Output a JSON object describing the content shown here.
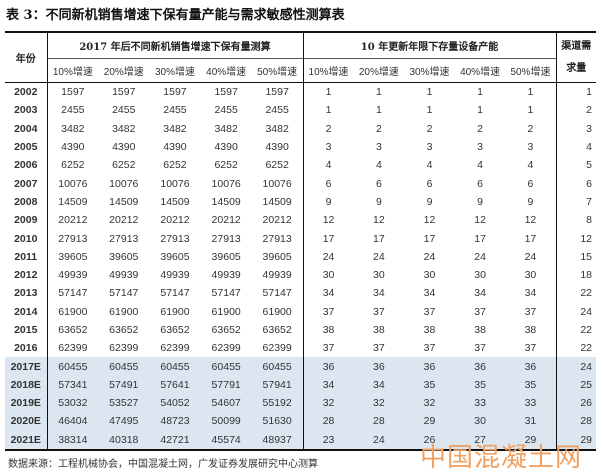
{
  "title": "表 3：不同新机销售增速下保有量产能与需求敏感性测算表",
  "table": {
    "year_header": "年份",
    "group1_header": "2017 年后不同新机销售增速下保有量测算",
    "group2_header": "10 年更新年限下存量设备产能",
    "channel_header": "渠道需求量",
    "subheaders": [
      "10%增速",
      "20%增速",
      "30%增速",
      "40%增速",
      "50%增速"
    ],
    "highlight_color": "#dce6f1",
    "rows": [
      {
        "year": "2002",
        "stock": [
          "1597",
          "1597",
          "1597",
          "1597",
          "1597"
        ],
        "capacity": [
          "1",
          "1",
          "1",
          "1",
          "1"
        ],
        "channel": "1"
      },
      {
        "year": "2003",
        "stock": [
          "2455",
          "2455",
          "2455",
          "2455",
          "2455"
        ],
        "capacity": [
          "1",
          "1",
          "1",
          "1",
          "1"
        ],
        "channel": "2"
      },
      {
        "year": "2004",
        "stock": [
          "3482",
          "3482",
          "3482",
          "3482",
          "3482"
        ],
        "capacity": [
          "2",
          "2",
          "2",
          "2",
          "2"
        ],
        "channel": "3"
      },
      {
        "year": "2005",
        "stock": [
          "4390",
          "4390",
          "4390",
          "4390",
          "4390"
        ],
        "capacity": [
          "3",
          "3",
          "3",
          "3",
          "3"
        ],
        "channel": "4"
      },
      {
        "year": "2006",
        "stock": [
          "6252",
          "6252",
          "6252",
          "6252",
          "6252"
        ],
        "capacity": [
          "4",
          "4",
          "4",
          "4",
          "4"
        ],
        "channel": "5"
      },
      {
        "year": "2007",
        "stock": [
          "10076",
          "10076",
          "10076",
          "10076",
          "10076"
        ],
        "capacity": [
          "6",
          "6",
          "6",
          "6",
          "6"
        ],
        "channel": "6"
      },
      {
        "year": "2008",
        "stock": [
          "14509",
          "14509",
          "14509",
          "14509",
          "14509"
        ],
        "capacity": [
          "9",
          "9",
          "9",
          "9",
          "9"
        ],
        "channel": "7"
      },
      {
        "year": "2009",
        "stock": [
          "20212",
          "20212",
          "20212",
          "20212",
          "20212"
        ],
        "capacity": [
          "12",
          "12",
          "12",
          "12",
          "12"
        ],
        "channel": "8"
      },
      {
        "year": "2010",
        "stock": [
          "27913",
          "27913",
          "27913",
          "27913",
          "27913"
        ],
        "capacity": [
          "17",
          "17",
          "17",
          "17",
          "17"
        ],
        "channel": "12"
      },
      {
        "year": "2011",
        "stock": [
          "39605",
          "39605",
          "39605",
          "39605",
          "39605"
        ],
        "capacity": [
          "24",
          "24",
          "24",
          "24",
          "24"
        ],
        "channel": "15"
      },
      {
        "year": "2012",
        "stock": [
          "49939",
          "49939",
          "49939",
          "49939",
          "49939"
        ],
        "capacity": [
          "30",
          "30",
          "30",
          "30",
          "30"
        ],
        "channel": "18"
      },
      {
        "year": "2013",
        "stock": [
          "57147",
          "57147",
          "57147",
          "57147",
          "57147"
        ],
        "capacity": [
          "34",
          "34",
          "34",
          "34",
          "34"
        ],
        "channel": "22"
      },
      {
        "year": "2014",
        "stock": [
          "61900",
          "61900",
          "61900",
          "61900",
          "61900"
        ],
        "capacity": [
          "37",
          "37",
          "37",
          "37",
          "37"
        ],
        "channel": "24"
      },
      {
        "year": "2015",
        "stock": [
          "63652",
          "63652",
          "63652",
          "63652",
          "63652"
        ],
        "capacity": [
          "38",
          "38",
          "38",
          "38",
          "38"
        ],
        "channel": "22"
      },
      {
        "year": "2016",
        "stock": [
          "62399",
          "62399",
          "62399",
          "62399",
          "62399"
        ],
        "capacity": [
          "37",
          "37",
          "37",
          "37",
          "37"
        ],
        "channel": "22"
      },
      {
        "year": "2017E",
        "stock": [
          "60455",
          "60455",
          "60455",
          "60455",
          "60455"
        ],
        "capacity": [
          "36",
          "36",
          "36",
          "36",
          "36"
        ],
        "channel": "24",
        "estimate": true
      },
      {
        "year": "2018E",
        "stock": [
          "57341",
          "57491",
          "57641",
          "57791",
          "57941"
        ],
        "capacity": [
          "34",
          "34",
          "35",
          "35",
          "35"
        ],
        "channel": "25",
        "estimate": true
      },
      {
        "year": "2019E",
        "stock": [
          "53032",
          "53527",
          "54052",
          "54607",
          "55192"
        ],
        "capacity": [
          "32",
          "32",
          "32",
          "33",
          "33"
        ],
        "channel": "26",
        "estimate": true
      },
      {
        "year": "2020E",
        "stock": [
          "46404",
          "47495",
          "48723",
          "50099",
          "51630"
        ],
        "capacity": [
          "28",
          "28",
          "29",
          "30",
          "31"
        ],
        "channel": "28",
        "estimate": true
      },
      {
        "year": "2021E",
        "stock": [
          "38314",
          "40318",
          "42721",
          "45574",
          "48937"
        ],
        "capacity": [
          "23",
          "24",
          "26",
          "27",
          "29"
        ],
        "channel": "29",
        "estimate": true
      }
    ]
  },
  "source": "数据来源：工程机械协会，中国混凝土网，广发证券发展研究中心测算",
  "watermark": "中国混凝土网"
}
